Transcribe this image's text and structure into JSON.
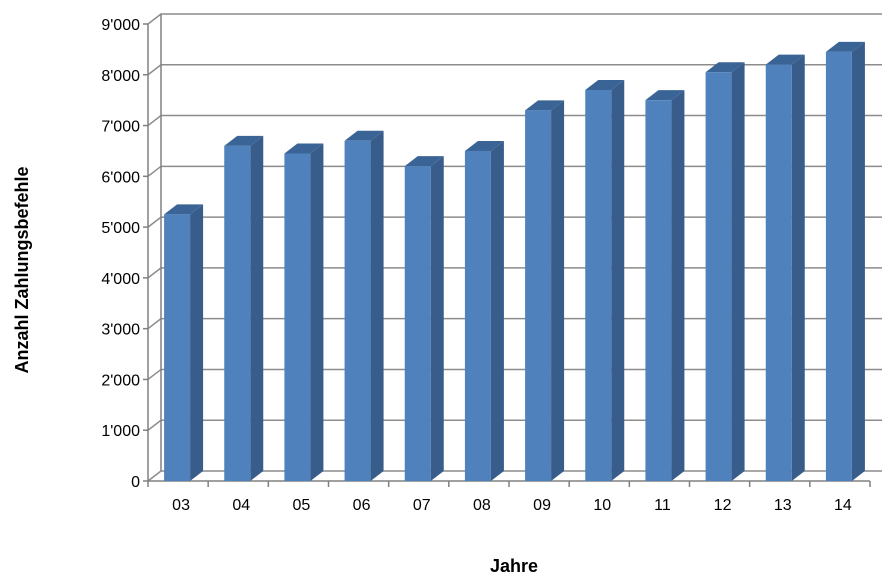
{
  "chart_data": {
    "type": "bar",
    "style": "3d-column",
    "categories": [
      "03",
      "04",
      "05",
      "06",
      "07",
      "08",
      "09",
      "10",
      "11",
      "12",
      "13",
      "14"
    ],
    "series": [
      {
        "values": [
          5250,
          6600,
          6450,
          6700,
          6200,
          6500,
          7300,
          7700,
          7500,
          8050,
          8200,
          8450
        ]
      }
    ],
    "xlabel": "Jahre",
    "ylabel": "Anzahl Zahlungsbefehle",
    "ylim": [
      0,
      9000
    ],
    "yticks": [
      0,
      1000,
      2000,
      3000,
      4000,
      5000,
      6000,
      7000,
      8000,
      9000
    ],
    "ytick_labels": [
      "0",
      "1'000",
      "2'000",
      "3'000",
      "4'000",
      "5'000",
      "6'000",
      "7'000",
      "8'000",
      "9'000"
    ],
    "grid": true,
    "legend": "none",
    "colors": {
      "bar_front": "#4F81BD",
      "bar_side": "#385D8A",
      "bar_top": "#3B6496",
      "grid": "#8C8C8C",
      "axis": "#808080"
    }
  }
}
